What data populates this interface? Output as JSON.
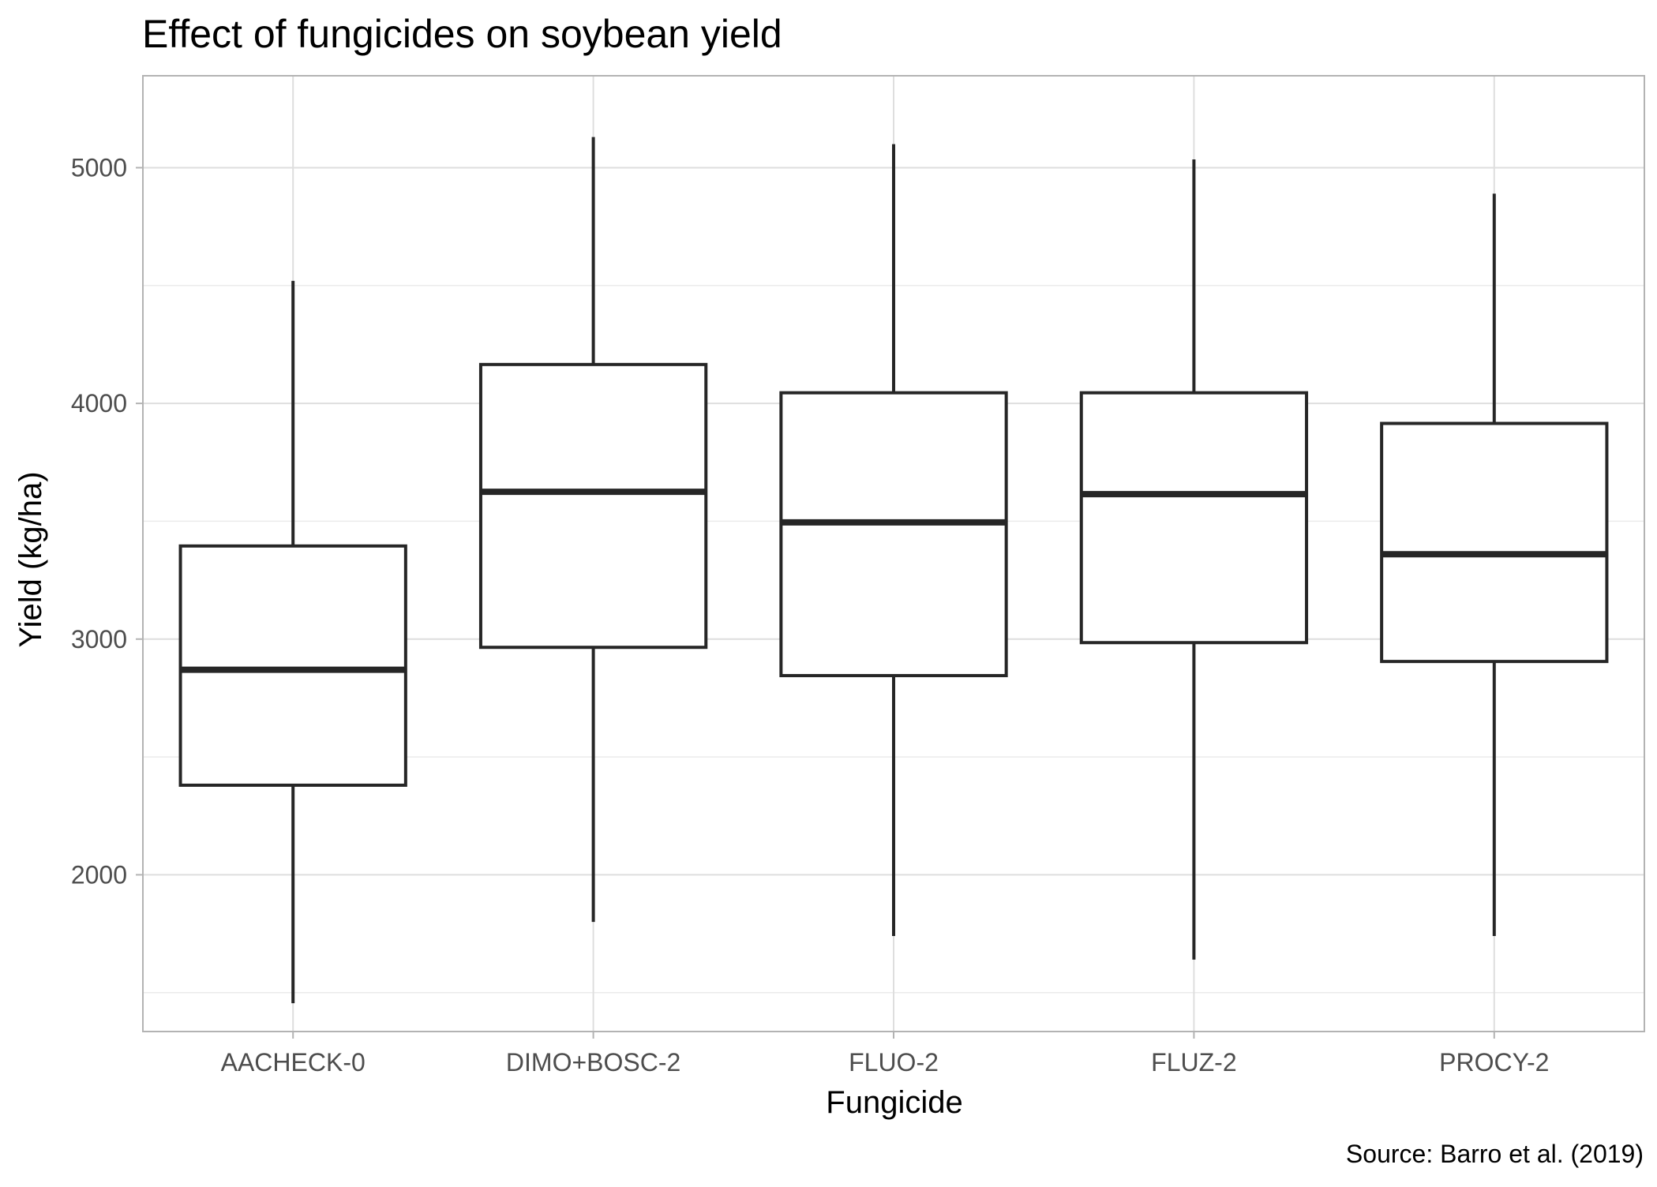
{
  "chart_data": {
    "type": "boxplot",
    "title": "Effect of fungicides on soybean yield",
    "xlabel": "Fungicide",
    "ylabel": "Yield (kg/ha)",
    "caption": "Source: Barro et al. (2019)",
    "categories": [
      "AACHECK-0",
      "DIMO+BOSC-2",
      "FLUO-2",
      "FLUZ-2",
      "PROCY-2"
    ],
    "ylim": [
      1335,
      5390
    ],
    "yticks": [
      2000,
      3000,
      4000,
      5000
    ],
    "yticks_minor": [
      1500,
      2500,
      3500,
      4500
    ],
    "grid": true,
    "boxes": [
      {
        "category": "AACHECK-0",
        "min": 1455,
        "q1": 2380,
        "median": 2870,
        "q3": 3395,
        "max": 4520
      },
      {
        "category": "DIMO+BOSC-2",
        "min": 1800,
        "q1": 2965,
        "median": 3625,
        "q3": 4165,
        "max": 5130
      },
      {
        "category": "FLUO-2",
        "min": 1740,
        "q1": 2845,
        "median": 3495,
        "q3": 4045,
        "max": 5100
      },
      {
        "category": "FLUZ-2",
        "min": 1640,
        "q1": 2985,
        "median": 3615,
        "q3": 4045,
        "max": 5035
      },
      {
        "category": "PROCY-2",
        "min": 1740,
        "q1": 2905,
        "median": 3360,
        "q3": 3915,
        "max": 4890
      }
    ]
  }
}
